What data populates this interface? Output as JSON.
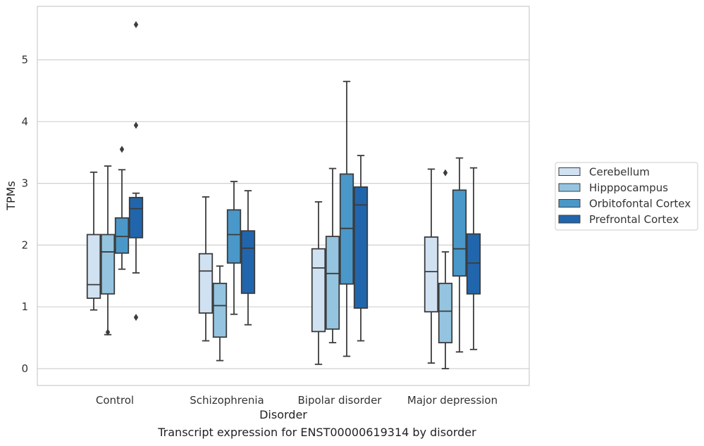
{
  "caption": "Transcript expression for ENST00000619314 by disorder",
  "chart_data": {
    "type": "box",
    "xlabel": "Disorder",
    "ylabel": "TPMs",
    "ylim": [
      -0.28,
      5.9
    ],
    "yticks": [
      0,
      1,
      2,
      3,
      4,
      5
    ],
    "grid": "horizontal",
    "legend_position": "right",
    "categories": [
      "Control",
      "Schizophrenia",
      "Bipolar disorder",
      "Major depression"
    ],
    "series": [
      {
        "name": "Cerebellum",
        "color": "#d0e1f2",
        "boxes": [
          {
            "whisker_low": 0.95,
            "q1": 1.14,
            "median": 1.36,
            "q3": 2.17,
            "whisker_high": 3.18,
            "outliers": []
          },
          {
            "whisker_low": 0.45,
            "q1": 0.9,
            "median": 1.58,
            "q3": 1.86,
            "whisker_high": 2.78,
            "outliers": []
          },
          {
            "whisker_low": 0.07,
            "q1": 0.6,
            "median": 1.63,
            "q3": 1.94,
            "whisker_high": 2.7,
            "outliers": []
          },
          {
            "whisker_low": 0.09,
            "q1": 0.92,
            "median": 1.57,
            "q3": 2.13,
            "whisker_high": 3.23,
            "outliers": []
          }
        ]
      },
      {
        "name": "Hipppocampus",
        "color": "#94c4df",
        "boxes": [
          {
            "whisker_low": 0.55,
            "q1": 1.21,
            "median": 1.89,
            "q3": 2.17,
            "whisker_high": 3.28,
            "outliers": [
              0.59
            ]
          },
          {
            "whisker_low": 0.13,
            "q1": 0.51,
            "median": 1.02,
            "q3": 1.38,
            "whisker_high": 1.66,
            "outliers": []
          },
          {
            "whisker_low": 0.42,
            "q1": 0.64,
            "median": 1.54,
            "q3": 2.14,
            "whisker_high": 3.24,
            "outliers": []
          },
          {
            "whisker_low": 0.0,
            "q1": 0.42,
            "median": 0.93,
            "q3": 1.38,
            "whisker_high": 1.89,
            "outliers": [
              3.17
            ]
          }
        ]
      },
      {
        "name": "Orbitofontal Cortex",
        "color": "#4a98c9",
        "boxes": [
          {
            "whisker_low": 1.61,
            "q1": 1.87,
            "median": 2.14,
            "q3": 2.44,
            "whisker_high": 3.22,
            "outliers": [
              3.55
            ]
          },
          {
            "whisker_low": 0.88,
            "q1": 1.71,
            "median": 2.17,
            "q3": 2.57,
            "whisker_high": 3.03,
            "outliers": []
          },
          {
            "whisker_low": 0.2,
            "q1": 1.37,
            "median": 2.27,
            "q3": 3.15,
            "whisker_high": 4.65,
            "outliers": []
          },
          {
            "whisker_low": 0.27,
            "q1": 1.5,
            "median": 1.94,
            "q3": 2.89,
            "whisker_high": 3.41,
            "outliers": []
          }
        ]
      },
      {
        "name": "Prefrontal Cortex",
        "color": "#2166ac",
        "boxes": [
          {
            "whisker_low": 1.55,
            "q1": 2.12,
            "median": 2.59,
            "q3": 2.77,
            "whisker_high": 2.84,
            "outliers": [
              0.83,
              3.94,
              5.57
            ]
          },
          {
            "whisker_low": 0.71,
            "q1": 1.22,
            "median": 1.95,
            "q3": 2.23,
            "whisker_high": 2.88,
            "outliers": []
          },
          {
            "whisker_low": 0.45,
            "q1": 0.98,
            "median": 2.65,
            "q3": 2.94,
            "whisker_high": 3.45,
            "outliers": []
          },
          {
            "whisker_low": 0.31,
            "q1": 1.21,
            "median": 1.71,
            "q3": 2.18,
            "whisker_high": 3.25,
            "outliers": []
          }
        ]
      }
    ]
  }
}
